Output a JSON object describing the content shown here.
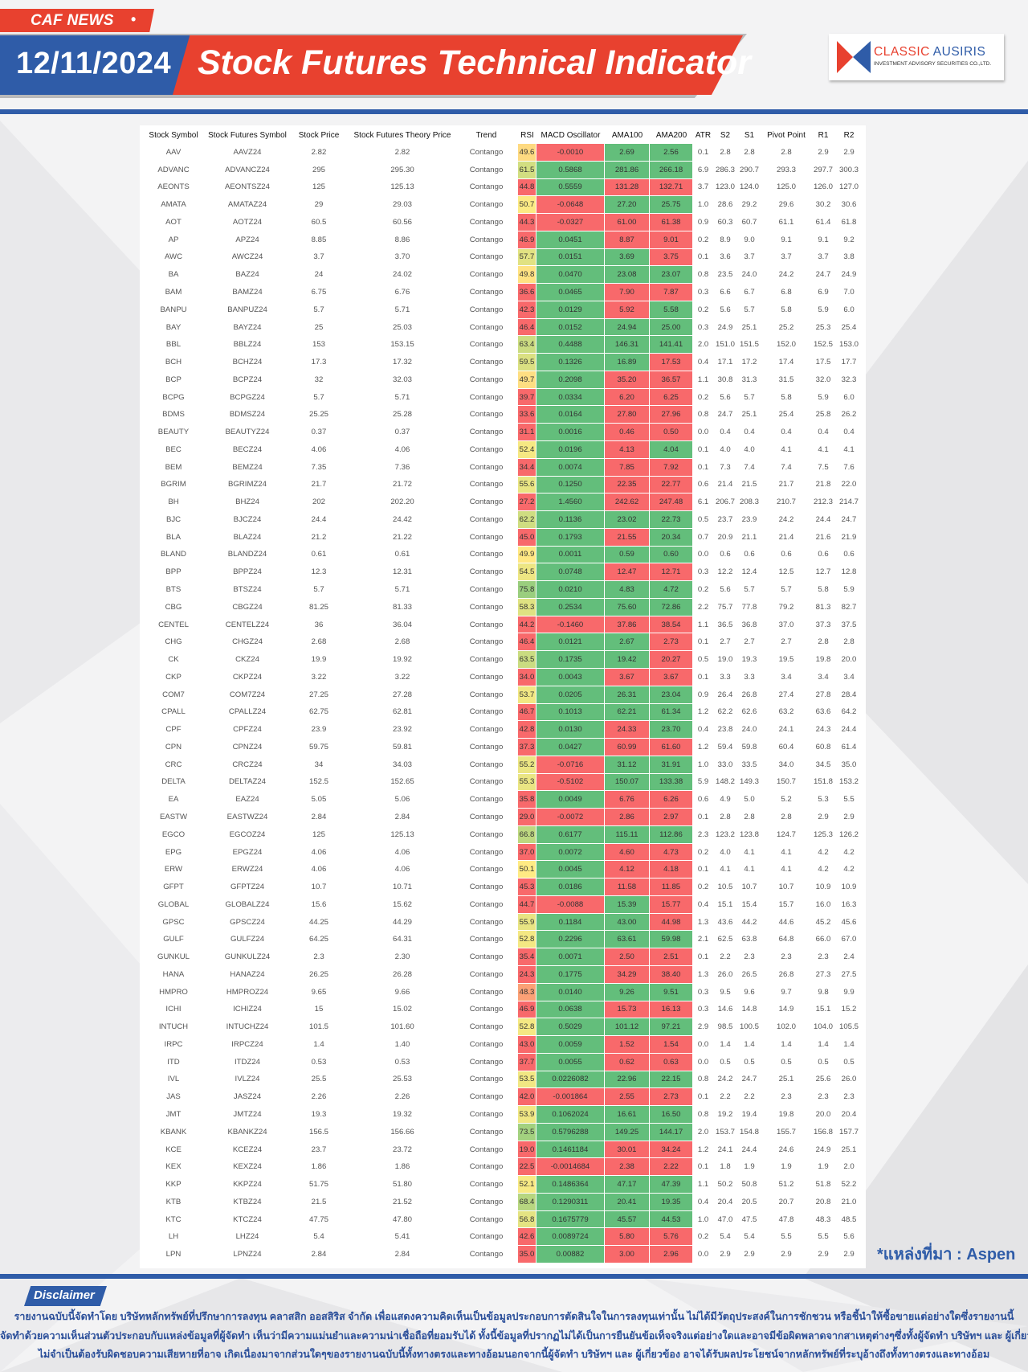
{
  "header": {
    "tag": "CAF NEWS",
    "tag_dot": "•",
    "date": "12/11/2024",
    "title": "Stock Futures Technical Indicator",
    "logo": {
      "name_red": "CLASSIC",
      "name_blue": "AUSIRIS",
      "sub": "INVESTMENT ADVISORY SECURITIES CO.,LTD."
    }
  },
  "colors": {
    "red": "#f8696b",
    "green": "#63be7b",
    "yellow": "#ffeb84",
    "brand_blue": "#2f5ca8",
    "brand_red": "#e8412f"
  },
  "table": {
    "columns": [
      "Stock Symbol",
      "Stock Futures Symbol",
      "Stock Price",
      "Stock Futures Theory Price",
      "Trend",
      "RSI",
      "MACD Oscillator",
      "AMA100",
      "AMA200",
      "ATR",
      "S2",
      "S1",
      "Pivot Point",
      "R1",
      "R2"
    ],
    "rows": [
      [
        "AAV",
        "AAVZ24",
        "2.82",
        "2.82",
        "Contango",
        "49.6",
        "-0.0010",
        "2.69",
        "2.56",
        "0.1",
        "2.8",
        "2.8",
        "2.8",
        "2.9",
        "2.9"
      ],
      [
        "ADVANC",
        "ADVANCZ24",
        "295",
        "295.30",
        "Contango",
        "61.5",
        "0.5868",
        "281.86",
        "266.18",
        "6.9",
        "286.3",
        "290.7",
        "293.3",
        "297.7",
        "300.3"
      ],
      [
        "AEONTS",
        "AEONTSZ24",
        "125",
        "125.13",
        "Contango",
        "44.8",
        "0.5559",
        "131.28",
        "132.71",
        "3.7",
        "123.0",
        "124.0",
        "125.0",
        "126.0",
        "127.0"
      ],
      [
        "AMATA",
        "AMATAZ24",
        "29",
        "29.03",
        "Contango",
        "50.7",
        "-0.0648",
        "27.20",
        "25.75",
        "1.0",
        "28.6",
        "29.2",
        "29.6",
        "30.2",
        "30.6"
      ],
      [
        "AOT",
        "AOTZ24",
        "60.5",
        "60.56",
        "Contango",
        "44.3",
        "-0.0327",
        "61.00",
        "61.38",
        "0.9",
        "60.3",
        "60.7",
        "61.1",
        "61.4",
        "61.8"
      ],
      [
        "AP",
        "APZ24",
        "8.85",
        "8.86",
        "Contango",
        "46.9",
        "0.0451",
        "8.87",
        "9.01",
        "0.2",
        "8.9",
        "9.0",
        "9.1",
        "9.1",
        "9.2"
      ],
      [
        "AWC",
        "AWCZ24",
        "3.7",
        "3.70",
        "Contango",
        "57.7",
        "0.0151",
        "3.69",
        "3.75",
        "0.1",
        "3.6",
        "3.7",
        "3.7",
        "3.7",
        "3.8"
      ],
      [
        "BA",
        "BAZ24",
        "24",
        "24.02",
        "Contango",
        "49.8",
        "0.0470",
        "23.08",
        "23.07",
        "0.8",
        "23.5",
        "24.0",
        "24.2",
        "24.7",
        "24.9"
      ],
      [
        "BAM",
        "BAMZ24",
        "6.75",
        "6.76",
        "Contango",
        "36.6",
        "0.0465",
        "7.90",
        "7.87",
        "0.3",
        "6.6",
        "6.7",
        "6.8",
        "6.9",
        "7.0"
      ],
      [
        "BANPU",
        "BANPUZ24",
        "5.7",
        "5.71",
        "Contango",
        "42.3",
        "0.0129",
        "5.92",
        "5.58",
        "0.2",
        "5.6",
        "5.7",
        "5.8",
        "5.9",
        "6.0"
      ],
      [
        "BAY",
        "BAYZ24",
        "25",
        "25.03",
        "Contango",
        "46.4",
        "0.0152",
        "24.94",
        "25.00",
        "0.3",
        "24.9",
        "25.1",
        "25.2",
        "25.3",
        "25.4"
      ],
      [
        "BBL",
        "BBLZ24",
        "153",
        "153.15",
        "Contango",
        "63.4",
        "0.4488",
        "146.31",
        "141.41",
        "2.0",
        "151.0",
        "151.5",
        "152.0",
        "152.5",
        "153.0"
      ],
      [
        "BCH",
        "BCHZ24",
        "17.3",
        "17.32",
        "Contango",
        "59.5",
        "0.1326",
        "16.89",
        "17.53",
        "0.4",
        "17.1",
        "17.2",
        "17.4",
        "17.5",
        "17.7"
      ],
      [
        "BCP",
        "BCPZ24",
        "32",
        "32.03",
        "Contango",
        "49.7",
        "0.2098",
        "35.20",
        "36.57",
        "1.1",
        "30.8",
        "31.3",
        "31.5",
        "32.0",
        "32.3"
      ],
      [
        "BCPG",
        "BCPGZ24",
        "5.7",
        "5.71",
        "Contango",
        "39.7",
        "0.0334",
        "6.20",
        "6.25",
        "0.2",
        "5.6",
        "5.7",
        "5.8",
        "5.9",
        "6.0"
      ],
      [
        "BDMS",
        "BDMSZ24",
        "25.25",
        "25.28",
        "Contango",
        "33.6",
        "0.0164",
        "27.80",
        "27.96",
        "0.8",
        "24.7",
        "25.1",
        "25.4",
        "25.8",
        "26.2"
      ],
      [
        "BEAUTY",
        "BEAUTYZ24",
        "0.37",
        "0.37",
        "Contango",
        "31.1",
        "0.0016",
        "0.46",
        "0.50",
        "0.0",
        "0.4",
        "0.4",
        "0.4",
        "0.4",
        "0.4"
      ],
      [
        "BEC",
        "BECZ24",
        "4.06",
        "4.06",
        "Contango",
        "52.4",
        "0.0196",
        "4.13",
        "4.04",
        "0.1",
        "4.0",
        "4.0",
        "4.1",
        "4.1",
        "4.1"
      ],
      [
        "BEM",
        "BEMZ24",
        "7.35",
        "7.36",
        "Contango",
        "34.4",
        "0.0074",
        "7.85",
        "7.92",
        "0.1",
        "7.3",
        "7.4",
        "7.4",
        "7.5",
        "7.6"
      ],
      [
        "BGRIM",
        "BGRIMZ24",
        "21.7",
        "21.72",
        "Contango",
        "55.6",
        "0.1250",
        "22.35",
        "22.77",
        "0.6",
        "21.4",
        "21.5",
        "21.7",
        "21.8",
        "22.0"
      ],
      [
        "BH",
        "BHZ24",
        "202",
        "202.20",
        "Contango",
        "27.2",
        "1.4560",
        "242.62",
        "247.48",
        "6.1",
        "206.7",
        "208.3",
        "210.7",
        "212.3",
        "214.7"
      ],
      [
        "BJC",
        "BJCZ24",
        "24.4",
        "24.42",
        "Contango",
        "62.2",
        "0.1136",
        "23.02",
        "22.73",
        "0.5",
        "23.7",
        "23.9",
        "24.2",
        "24.4",
        "24.7"
      ],
      [
        "BLA",
        "BLAZ24",
        "21.2",
        "21.22",
        "Contango",
        "45.0",
        "0.1793",
        "21.55",
        "20.34",
        "0.7",
        "20.9",
        "21.1",
        "21.4",
        "21.6",
        "21.9"
      ],
      [
        "BLAND",
        "BLANDZ24",
        "0.61",
        "0.61",
        "Contango",
        "49.9",
        "0.0011",
        "0.59",
        "0.60",
        "0.0",
        "0.6",
        "0.6",
        "0.6",
        "0.6",
        "0.6"
      ],
      [
        "BPP",
        "BPPZ24",
        "12.3",
        "12.31",
        "Contango",
        "54.5",
        "0.0748",
        "12.47",
        "12.71",
        "0.3",
        "12.2",
        "12.4",
        "12.5",
        "12.7",
        "12.8"
      ],
      [
        "BTS",
        "BTSZ24",
        "5.7",
        "5.71",
        "Contango",
        "75.8",
        "0.0210",
        "4.83",
        "4.72",
        "0.2",
        "5.6",
        "5.7",
        "5.7",
        "5.8",
        "5.9"
      ],
      [
        "CBG",
        "CBGZ24",
        "81.25",
        "81.33",
        "Contango",
        "58.3",
        "0.2534",
        "75.60",
        "72.86",
        "2.2",
        "75.7",
        "77.8",
        "79.2",
        "81.3",
        "82.7"
      ],
      [
        "CENTEL",
        "CENTELZ24",
        "36",
        "36.04",
        "Contango",
        "44.2",
        "-0.1460",
        "37.86",
        "38.54",
        "1.1",
        "36.5",
        "36.8",
        "37.0",
        "37.3",
        "37.5"
      ],
      [
        "CHG",
        "CHGZ24",
        "2.68",
        "2.68",
        "Contango",
        "46.4",
        "0.0121",
        "2.67",
        "2.73",
        "0.1",
        "2.7",
        "2.7",
        "2.7",
        "2.8",
        "2.8"
      ],
      [
        "CK",
        "CKZ24",
        "19.9",
        "19.92",
        "Contango",
        "63.5",
        "0.1735",
        "19.42",
        "20.27",
        "0.5",
        "19.0",
        "19.3",
        "19.5",
        "19.8",
        "20.0"
      ],
      [
        "CKP",
        "CKPZ24",
        "3.22",
        "3.22",
        "Contango",
        "34.0",
        "0.0043",
        "3.67",
        "3.67",
        "0.1",
        "3.3",
        "3.3",
        "3.4",
        "3.4",
        "3.4"
      ],
      [
        "COM7",
        "COM7Z24",
        "27.25",
        "27.28",
        "Contango",
        "53.7",
        "0.0205",
        "26.31",
        "23.04",
        "0.9",
        "26.4",
        "26.8",
        "27.4",
        "27.8",
        "28.4"
      ],
      [
        "CPALL",
        "CPALLZ24",
        "62.75",
        "62.81",
        "Contango",
        "46.7",
        "0.1013",
        "62.21",
        "61.34",
        "1.2",
        "62.2",
        "62.6",
        "63.2",
        "63.6",
        "64.2"
      ],
      [
        "CPF",
        "CPFZ24",
        "23.9",
        "23.92",
        "Contango",
        "42.8",
        "0.0130",
        "24.33",
        "23.70",
        "0.4",
        "23.8",
        "24.0",
        "24.1",
        "24.3",
        "24.4"
      ],
      [
        "CPN",
        "CPNZ24",
        "59.75",
        "59.81",
        "Contango",
        "37.3",
        "0.0427",
        "60.99",
        "61.60",
        "1.2",
        "59.4",
        "59.8",
        "60.4",
        "60.8",
        "61.4"
      ],
      [
        "CRC",
        "CRCZ24",
        "34",
        "34.03",
        "Contango",
        "55.2",
        "-0.0716",
        "31.12",
        "31.91",
        "1.0",
        "33.0",
        "33.5",
        "34.0",
        "34.5",
        "35.0"
      ],
      [
        "DELTA",
        "DELTAZ24",
        "152.5",
        "152.65",
        "Contango",
        "55.3",
        "-0.5102",
        "150.07",
        "133.38",
        "5.9",
        "148.2",
        "149.3",
        "150.7",
        "151.8",
        "153.2"
      ],
      [
        "EA",
        "EAZ24",
        "5.05",
        "5.06",
        "Contango",
        "35.8",
        "0.0049",
        "6.76",
        "6.26",
        "0.6",
        "4.9",
        "5.0",
        "5.2",
        "5.3",
        "5.5"
      ],
      [
        "EASTW",
        "EASTWZ24",
        "2.84",
        "2.84",
        "Contango",
        "29.0",
        "-0.0072",
        "2.86",
        "2.97",
        "0.1",
        "2.8",
        "2.8",
        "2.8",
        "2.9",
        "2.9"
      ],
      [
        "EGCO",
        "EGCOZ24",
        "125",
        "125.13",
        "Contango",
        "66.8",
        "0.6177",
        "115.11",
        "112.86",
        "2.3",
        "123.2",
        "123.8",
        "124.7",
        "125.3",
        "126.2"
      ],
      [
        "EPG",
        "EPGZ24",
        "4.06",
        "4.06",
        "Contango",
        "37.0",
        "0.0072",
        "4.60",
        "4.73",
        "0.2",
        "4.0",
        "4.1",
        "4.1",
        "4.2",
        "4.2"
      ],
      [
        "ERW",
        "ERWZ24",
        "4.06",
        "4.06",
        "Contango",
        "50.1",
        "0.0045",
        "4.12",
        "4.18",
        "0.1",
        "4.1",
        "4.1",
        "4.1",
        "4.2",
        "4.2"
      ],
      [
        "GFPT",
        "GFPTZ24",
        "10.7",
        "10.71",
        "Contango",
        "45.3",
        "0.0186",
        "11.58",
        "11.85",
        "0.2",
        "10.5",
        "10.7",
        "10.7",
        "10.9",
        "10.9"
      ],
      [
        "GLOBAL",
        "GLOBALZ24",
        "15.6",
        "15.62",
        "Contango",
        "44.7",
        "-0.0088",
        "15.39",
        "15.77",
        "0.4",
        "15.1",
        "15.4",
        "15.7",
        "16.0",
        "16.3"
      ],
      [
        "GPSC",
        "GPSCZ24",
        "44.25",
        "44.29",
        "Contango",
        "55.9",
        "0.1184",
        "43.00",
        "44.98",
        "1.3",
        "43.6",
        "44.2",
        "44.6",
        "45.2",
        "45.6"
      ],
      [
        "GULF",
        "GULFZ24",
        "64.25",
        "64.31",
        "Contango",
        "52.8",
        "0.2296",
        "63.61",
        "59.98",
        "2.1",
        "62.5",
        "63.8",
        "64.8",
        "66.0",
        "67.0"
      ],
      [
        "GUNKUL",
        "GUNKULZ24",
        "2.3",
        "2.30",
        "Contango",
        "35.4",
        "0.0071",
        "2.50",
        "2.51",
        "0.1",
        "2.2",
        "2.3",
        "2.3",
        "2.3",
        "2.4"
      ],
      [
        "HANA",
        "HANAZ24",
        "26.25",
        "26.28",
        "Contango",
        "24.3",
        "0.1775",
        "34.29",
        "38.40",
        "1.3",
        "26.0",
        "26.5",
        "26.8",
        "27.3",
        "27.5"
      ],
      [
        "HMPRO",
        "HMPROZ24",
        "9.65",
        "9.66",
        "Contango",
        "48.3",
        "0.0140",
        "9.26",
        "9.51",
        "0.3",
        "9.5",
        "9.6",
        "9.7",
        "9.8",
        "9.9"
      ],
      [
        "ICHI",
        "ICHIZ24",
        "15",
        "15.02",
        "Contango",
        "46.9",
        "0.0638",
        "15.73",
        "16.13",
        "0.3",
        "14.6",
        "14.8",
        "14.9",
        "15.1",
        "15.2"
      ],
      [
        "INTUCH",
        "INTUCHZ24",
        "101.5",
        "101.60",
        "Contango",
        "52.8",
        "0.5029",
        "101.12",
        "97.21",
        "2.9",
        "98.5",
        "100.5",
        "102.0",
        "104.0",
        "105.5"
      ],
      [
        "IRPC",
        "IRPCZ24",
        "1.4",
        "1.40",
        "Contango",
        "43.0",
        "0.0059",
        "1.52",
        "1.54",
        "0.0",
        "1.4",
        "1.4",
        "1.4",
        "1.4",
        "1.4"
      ],
      [
        "ITD",
        "ITDZ24",
        "0.53",
        "0.53",
        "Contango",
        "37.7",
        "0.0055",
        "0.62",
        "0.63",
        "0.0",
        "0.5",
        "0.5",
        "0.5",
        "0.5",
        "0.5"
      ],
      [
        "IVL",
        "IVLZ24",
        "25.5",
        "25.53",
        "Contango",
        "53.5",
        "0.0226082",
        "22.96",
        "22.15",
        "0.8",
        "24.2",
        "24.7",
        "25.1",
        "25.6",
        "26.0"
      ],
      [
        "JAS",
        "JASZ24",
        "2.26",
        "2.26",
        "Contango",
        "42.0",
        "-0.001864",
        "2.55",
        "2.73",
        "0.1",
        "2.2",
        "2.2",
        "2.3",
        "2.3",
        "2.3"
      ],
      [
        "JMT",
        "JMTZ24",
        "19.3",
        "19.32",
        "Contango",
        "53.9",
        "0.1062024",
        "16.61",
        "16.50",
        "0.8",
        "19.2",
        "19.4",
        "19.8",
        "20.0",
        "20.4"
      ],
      [
        "KBANK",
        "KBANKZ24",
        "156.5",
        "156.66",
        "Contango",
        "73.5",
        "0.5796288",
        "149.25",
        "144.17",
        "2.0",
        "153.7",
        "154.8",
        "155.7",
        "156.8",
        "157.7"
      ],
      [
        "KCE",
        "KCEZ24",
        "23.7",
        "23.72",
        "Contango",
        "19.0",
        "0.1461184",
        "30.01",
        "34.24",
        "1.2",
        "24.1",
        "24.4",
        "24.6",
        "24.9",
        "25.1"
      ],
      [
        "KEX",
        "KEXZ24",
        "1.86",
        "1.86",
        "Contango",
        "22.5",
        "-0.0014684",
        "2.38",
        "2.22",
        "0.1",
        "1.8",
        "1.9",
        "1.9",
        "1.9",
        "2.0"
      ],
      [
        "KKP",
        "KKPZ24",
        "51.75",
        "51.80",
        "Contango",
        "52.1",
        "0.1486364",
        "47.17",
        "47.39",
        "1.1",
        "50.2",
        "50.8",
        "51.2",
        "51.8",
        "52.2"
      ],
      [
        "KTB",
        "KTBZ24",
        "21.5",
        "21.52",
        "Contango",
        "68.4",
        "0.1290311",
        "20.41",
        "19.35",
        "0.4",
        "20.4",
        "20.5",
        "20.7",
        "20.8",
        "21.0"
      ],
      [
        "KTC",
        "KTCZ24",
        "47.75",
        "47.80",
        "Contango",
        "56.8",
        "0.1675779",
        "45.57",
        "44.53",
        "1.0",
        "47.0",
        "47.5",
        "47.8",
        "48.3",
        "48.5"
      ],
      [
        "LH",
        "LHZ24",
        "5.4",
        "5.41",
        "Contango",
        "42.6",
        "0.0089724",
        "5.80",
        "5.76",
        "0.2",
        "5.4",
        "5.4",
        "5.5",
        "5.5",
        "5.6"
      ],
      [
        "LPN",
        "LPNZ24",
        "2.84",
        "2.84",
        "Contango",
        "35.0",
        "0.00882",
        "3.00",
        "2.96",
        "0.0",
        "2.9",
        "2.9",
        "2.9",
        "2.9",
        "2.9"
      ]
    ]
  },
  "source": "*แหล่งที่มา : Aspen",
  "disclaimer": {
    "label": "Disclaimer",
    "lines": [
      "รายงานฉบับนี้จัดทำโดย บริษัทหลักทรัพย์ที่ปรึกษาการลงทุน คลาสสิก ออสสิริส จำกัด  เพื่อแสดงความคิดเห็นเป็นข้อมูลประกอบการตัดสินใจในการลงทุนเท่านั้น ไม่ได้มีวัตถุประสงค์ในการชักชวน หรือชี้นำให้ซื้อขายแต่อย่างใดซึ่งรายงานนี้",
      "จัดทำด้วยความเห็นส่วนตัวประกอบกับแหล่งข้อมูลที่ผู้จัดทำ เห็นว่ามีความแม่นยำและความน่าเชื่อถือที่ยอมรับได้ ทั้งนี้ข้อมูลที่ปรากฏไม่ได้เป็นการยืนยันข้อเท็จจริงแต่อย่างใดและอาจมีข้อผิดพลาดจากสาเหตุต่างๆซึ่งทั้งผู้จัดทำ  บริษัทฯ  และ  ผู้เกี่ยวข้อง",
      "ไม่จำเป็นต้องรับผิดชอบความเสียหายที่อาจ เกิดเนื่องมาจากส่วนใดๆของรายงานฉบับนี้ทั้งทางตรงและทางอ้อมนอกจากนี้ผู้จัดทำ บริษัทฯ และ ผู้เกี่ยวข้อง  อาจได้รับผลประโยชน์จากหลักทรัพย์ที่ระบุอ้างถึงทั้งทางตรงและทางอ้อม"
    ]
  }
}
